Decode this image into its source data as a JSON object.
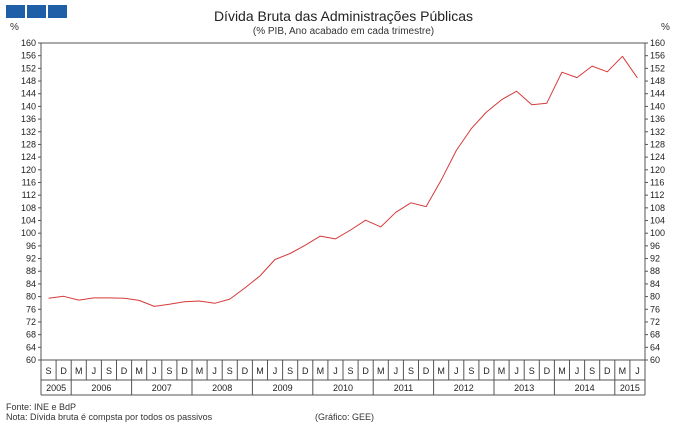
{
  "header": {
    "logo_blocks": 3,
    "brand_color": "#1f5fa8"
  },
  "footer": {
    "source": "Fonte: INE e BdP",
    "note": "Nota: Dívida  bruta  é compsta por todos os passivos",
    "credit": "(Gráfico:  GEE)"
  },
  "chart_data": {
    "type": "line",
    "title": "Dívida Bruta das Administrações  Públicas",
    "subtitle": "(% PIB, Ano acabado em cada trimestre)",
    "ylabel_left": "%",
    "ylabel_right": "%",
    "ylim": [
      60,
      160
    ],
    "yticks": [
      60,
      64,
      68,
      72,
      76,
      80,
      84,
      88,
      92,
      96,
      100,
      104,
      108,
      112,
      116,
      120,
      124,
      128,
      132,
      136,
      140,
      144,
      148,
      152,
      156,
      160
    ],
    "grid": false,
    "line_color": "#d63a3a",
    "x_quarter_labels": [
      "S",
      "D",
      "M",
      "J",
      "S",
      "D",
      "M",
      "J",
      "S",
      "D",
      "M",
      "J",
      "S",
      "D",
      "M",
      "J",
      "S",
      "D",
      "M",
      "J",
      "S",
      "D",
      "M",
      "J",
      "S",
      "D",
      "M",
      "J",
      "S",
      "D",
      "M",
      "J",
      "S",
      "D",
      "M",
      "J",
      "S",
      "D",
      "M",
      "J"
    ],
    "years": [
      {
        "label": "2005",
        "quarters": 2
      },
      {
        "label": "2006",
        "quarters": 4
      },
      {
        "label": "2007",
        "quarters": 4
      },
      {
        "label": "2008",
        "quarters": 4
      },
      {
        "label": "2009",
        "quarters": 4
      },
      {
        "label": "2010",
        "quarters": 4
      },
      {
        "label": "2011",
        "quarters": 4
      },
      {
        "label": "2012",
        "quarters": 4
      },
      {
        "label": "2013",
        "quarters": 4
      },
      {
        "label": "2014",
        "quarters": 4
      },
      {
        "label": "2015",
        "quarters": 2
      }
    ],
    "series": [
      {
        "values": [
          79.5,
          80.1,
          78.9,
          79.6,
          79.6,
          79.5,
          78.8,
          76.9,
          77.6,
          78.4,
          78.6,
          77.9,
          79.2,
          82.7,
          86.5,
          91.7,
          93.6,
          96.2,
          99.1,
          98.2,
          101.0,
          104.1,
          102.0,
          106.6,
          109.6,
          108.4,
          116.7,
          126.1,
          133.0,
          138.2,
          142.1,
          144.8,
          140.5,
          141.0,
          150.8,
          149.1,
          152.7,
          150.9,
          155.8,
          149.0
        ]
      }
    ]
  }
}
